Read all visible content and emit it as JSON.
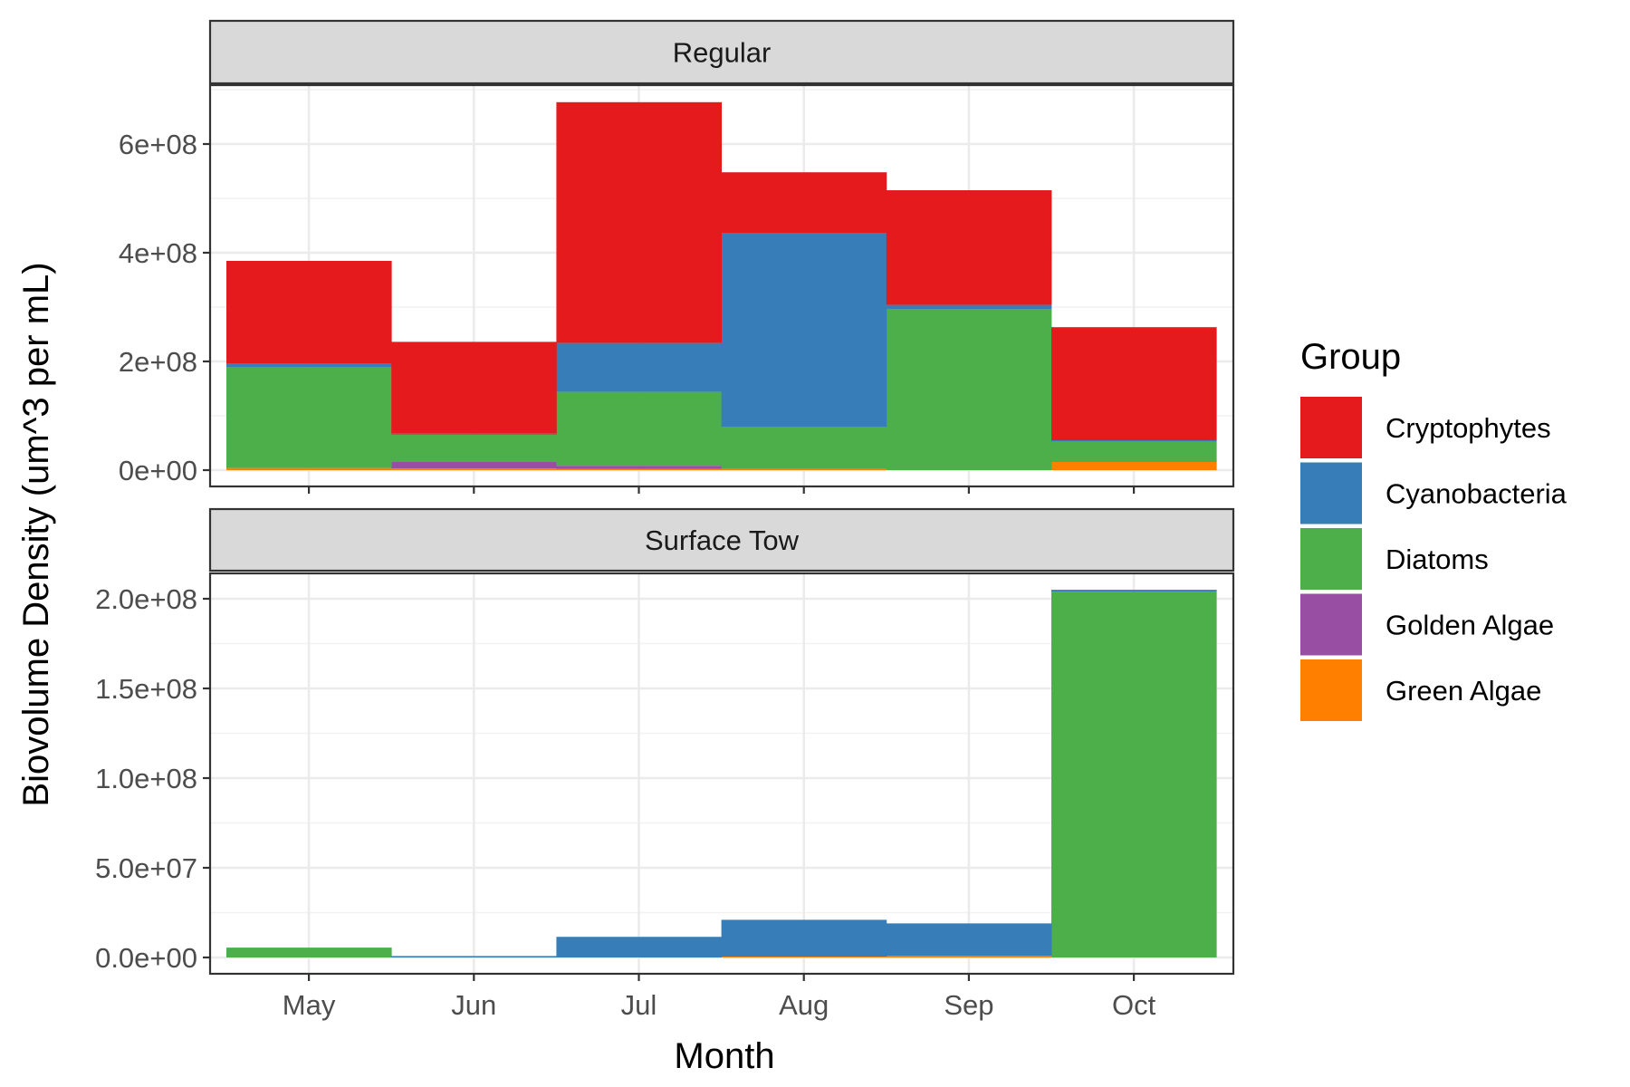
{
  "chart_data": {
    "type": "bar",
    "stacked": true,
    "xlabel": "Month",
    "ylabel": "Biovolume Density (um^3 per mL)",
    "categories": [
      "May",
      "Jun",
      "Jul",
      "Aug",
      "Sep",
      "Oct"
    ],
    "legend": {
      "title": "Group",
      "position": "right",
      "items": [
        {
          "name": "Cryptophytes",
          "color": "#E41A1C"
        },
        {
          "name": "Cyanobacteria",
          "color": "#377EB8"
        },
        {
          "name": "Diatoms",
          "color": "#4DAF4A"
        },
        {
          "name": "Golden Algae",
          "color": "#984EA3"
        },
        {
          "name": "Green Algae",
          "color": "#FF7F00"
        }
      ]
    },
    "grid": true,
    "facets": [
      {
        "label": "Regular",
        "ylim": [
          0,
          700000000
        ],
        "yticks": [
          0,
          200000000,
          400000000,
          600000000
        ],
        "ytick_labels": [
          "0e+00",
          "2e+08",
          "4e+08",
          "6e+08"
        ],
        "series": [
          {
            "name": "Green Algae",
            "values": [
              4000000,
              3000000,
              2000000,
              2000000,
              0,
              15000000
            ]
          },
          {
            "name": "Golden Algae",
            "values": [
              0,
              12000000,
              6000000,
              0,
              0,
              0
            ]
          },
          {
            "name": "Diatoms",
            "values": [
              186000000,
              50000000,
              136000000,
              78000000,
              296000000,
              37000000
            ]
          },
          {
            "name": "Cyanobacteria",
            "values": [
              6000000,
              2000000,
              90000000,
              356000000,
              8000000,
              3000000
            ]
          },
          {
            "name": "Cryptophytes",
            "values": [
              189000000,
              169000000,
              443000000,
              112000000,
              211000000,
              208000000
            ]
          }
        ]
      },
      {
        "label": "Surface Tow",
        "ylim": [
          0,
          210000000
        ],
        "yticks": [
          0,
          50000000,
          100000000,
          150000000,
          200000000
        ],
        "ytick_labels": [
          "0.0e+00",
          "5.0e+07",
          "1.0e+08",
          "1.5e+08",
          "2.0e+08"
        ],
        "series": [
          {
            "name": "Green Algae",
            "values": [
              0,
              0,
              0,
              500000,
              1000000,
              0
            ]
          },
          {
            "name": "Golden Algae",
            "values": [
              0,
              0,
              0,
              0,
              0,
              0
            ]
          },
          {
            "name": "Diatoms",
            "values": [
              5500000,
              0,
              0,
              0,
              0,
              204000000
            ]
          },
          {
            "name": "Cyanobacteria",
            "values": [
              0,
              800000,
              11500000,
              20500000,
              18000000,
              1000000
            ]
          },
          {
            "name": "Cryptophytes",
            "values": [
              0,
              0,
              0,
              0,
              0,
              0
            ]
          }
        ]
      }
    ]
  }
}
